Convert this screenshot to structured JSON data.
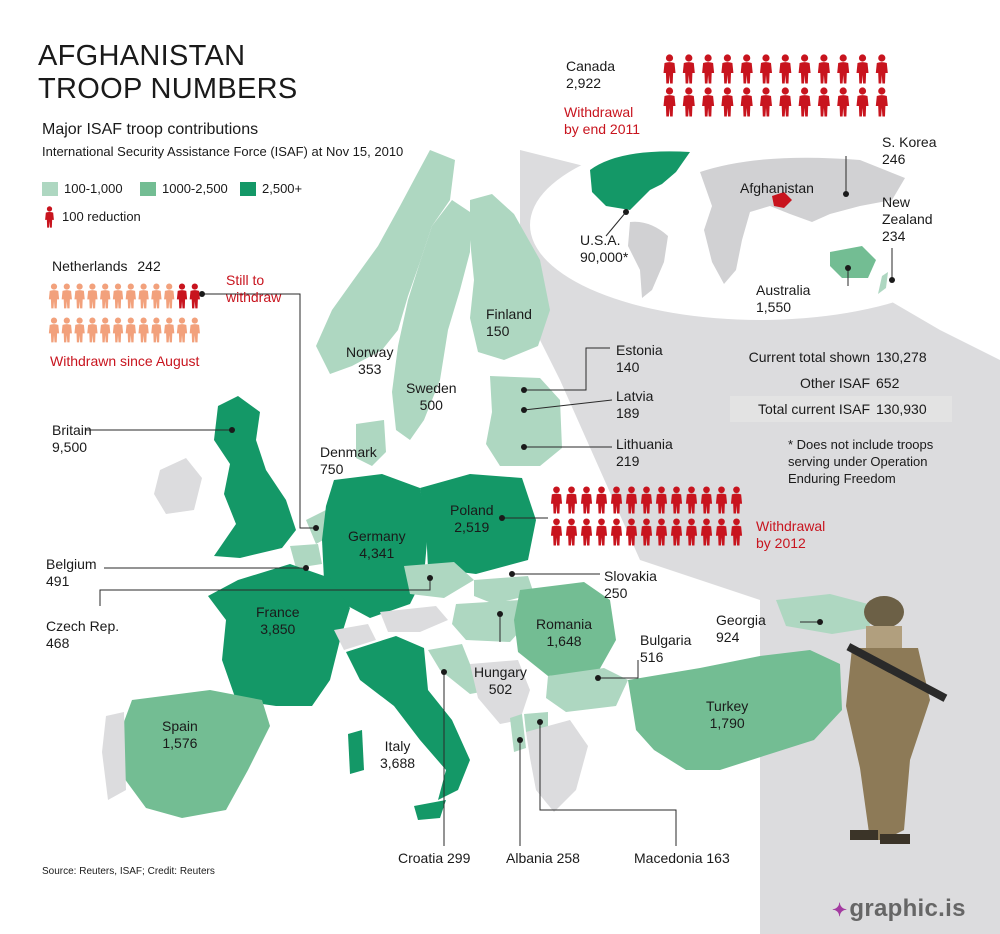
{
  "title_line1": "AFGHANISTAN",
  "title_line2": "TROOP NUMBERS",
  "subtitle": "Major ISAF troop contributions",
  "subtitle2": "International Security Assistance Force (ISAF) at Nov 15, 2010",
  "legend": {
    "light": "100-1,000",
    "mid": "1000-2,500",
    "dark": "2,500+",
    "reduction": "100 reduction"
  },
  "colors": {
    "light": "#aed7c1",
    "mid": "#73bd93",
    "dark": "#149867",
    "land": "#d7d7d9",
    "red": "#c8141e",
    "withdrawn": "#f2a17c"
  },
  "countries": {
    "canada": {
      "name": "Canada",
      "value": "2,922"
    },
    "usa": {
      "name": "U.S.A.",
      "value": "90,000*"
    },
    "s_korea": {
      "name": "S. Korea",
      "value": "246"
    },
    "new_zealand": {
      "name1": "New",
      "name2": "Zealand",
      "value": "234"
    },
    "australia": {
      "name": "Australia",
      "value": "1,550"
    },
    "afghanistan": {
      "name": "Afghanistan"
    },
    "netherlands": {
      "name": "Netherlands",
      "value": "242"
    },
    "finland": {
      "name": "Finland",
      "value": "150"
    },
    "norway": {
      "name": "Norway",
      "value": "353"
    },
    "sweden": {
      "name": "Sweden",
      "value": "500"
    },
    "estonia": {
      "name": "Estonia",
      "value": "140"
    },
    "latvia": {
      "name": "Latvia",
      "value": "189"
    },
    "lithuania": {
      "name": "Lithuania",
      "value": "219"
    },
    "britain": {
      "name": "Britain",
      "value": "9,500"
    },
    "denmark": {
      "name": "Denmark",
      "value": "750"
    },
    "poland": {
      "name": "Poland",
      "value": "2,519"
    },
    "germany": {
      "name": "Germany",
      "value": "4,341"
    },
    "belgium": {
      "name": "Belgium",
      "value": "491"
    },
    "czech": {
      "name": "Czech Rep.",
      "value": "468"
    },
    "slovakia": {
      "name": "Slovakia",
      "value": "250"
    },
    "france": {
      "name": "France",
      "value": "3,850"
    },
    "romania": {
      "name": "Romania",
      "value": "1,648"
    },
    "georgia": {
      "name": "Georgia",
      "value": "924"
    },
    "bulgaria": {
      "name": "Bulgaria",
      "value": "516"
    },
    "hungary": {
      "name": "Hungary",
      "value": "502"
    },
    "turkey": {
      "name": "Turkey",
      "value": "1,790"
    },
    "spain": {
      "name": "Spain",
      "value": "1,576"
    },
    "italy": {
      "name": "Italy",
      "value": "3,688"
    },
    "croatia": {
      "label": "Croatia 299"
    },
    "albania": {
      "label": "Albania 258"
    },
    "macedonia": {
      "label": "Macedonia 163"
    }
  },
  "annotations": {
    "canada_withdrawal_1": "Withdrawal",
    "canada_withdrawal_2": "by end 2011",
    "nl_still_1": "Still to",
    "nl_still_2": "withdraw",
    "nl_withdrawn": "Withdrawn since August",
    "poland_withdrawal_1": "Withdrawal",
    "poland_withdrawal_2": "by 2012"
  },
  "stats": [
    {
      "label": "Current total shown",
      "value": "130,278"
    },
    {
      "label": "Other ISAF",
      "value": "652"
    },
    {
      "label": "Total current ISAF",
      "value": "130,930"
    }
  ],
  "footnote": [
    "* Does not include troops",
    "serving under Operation",
    "Enduring Freedom"
  ],
  "source": "Source: Reuters, ISAF; Credit: Reuters",
  "brand": "graphic.is",
  "icon_rows": {
    "canada": {
      "rows": 2,
      "per_row": 12,
      "color": "red"
    },
    "netherlands_withdrawn": {
      "rows": 2,
      "per_row": 12,
      "red_count": 2
    },
    "poland": {
      "rows": 2,
      "per_row": 13,
      "color": "red"
    }
  }
}
